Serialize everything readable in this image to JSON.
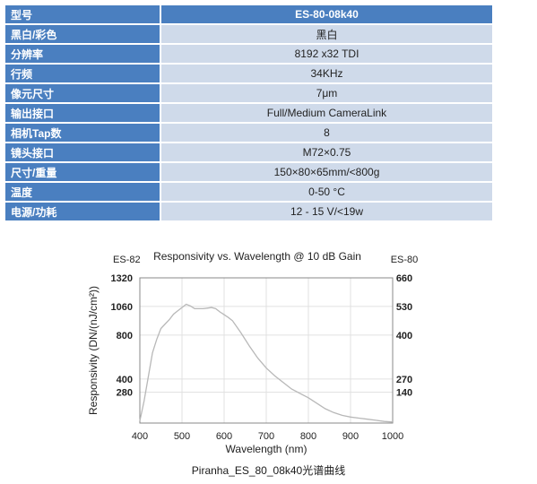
{
  "specs": {
    "header": {
      "label": "型号",
      "value": "ES-80-08k40"
    },
    "rows": [
      {
        "label": "黑白/彩色",
        "value": "黑白"
      },
      {
        "label": "分辨率",
        "value": "8192 x32 TDI"
      },
      {
        "label": "行频",
        "value": "34KHz"
      },
      {
        "label": "像元尺寸",
        "value": "7μm"
      },
      {
        "label": "输出接口",
        "value": "Full/Medium CameraLink"
      },
      {
        "label": "相机Tap数",
        "value": "8"
      },
      {
        "label": "镜头接口",
        "value": "M72×0.75"
      },
      {
        "label": "尺寸/重量",
        "value": "150×80×65mm/<800g"
      },
      {
        "label": "温度",
        "value": "0-50 °C"
      },
      {
        "label": "电源/功耗",
        "value": "12 - 15 V/<19w"
      }
    ]
  },
  "chart_data": {
    "type": "line",
    "title": "Responsivity vs. Wavelength @ 10 dB Gain",
    "xlabel": "Wavelength (nm)",
    "ylabel": "Responsivity (DN/(nJ/cm²))",
    "left_axis_title": "ES-82",
    "right_axis_title": "ES-80",
    "xlim": [
      400,
      1000
    ],
    "ylim": [
      0,
      1320
    ],
    "x_ticks": [
      400,
      500,
      600,
      700,
      800,
      900,
      1000
    ],
    "y_ticks_left": [
      280,
      400,
      800,
      1060,
      1320
    ],
    "y_ticks_right": [
      "140",
      "270",
      "400",
      "530",
      "660"
    ],
    "grid": true,
    "series": [
      {
        "x": [
          400,
          410,
          420,
          430,
          440,
          450,
          460,
          470,
          480,
          490,
          500,
          510,
          520,
          530,
          540,
          550,
          560,
          570,
          580,
          590,
          600,
          610,
          620,
          640,
          660,
          680,
          700,
          720,
          740,
          760,
          780,
          800,
          820,
          840,
          860,
          880,
          900,
          920,
          940,
          960,
          980,
          1000
        ],
        "y": [
          20,
          200,
          420,
          640,
          760,
          860,
          900,
          940,
          990,
          1020,
          1050,
          1080,
          1065,
          1040,
          1040,
          1040,
          1045,
          1050,
          1040,
          1010,
          985,
          960,
          930,
          820,
          700,
          590,
          500,
          430,
          370,
          310,
          270,
          230,
          180,
          130,
          95,
          70,
          55,
          45,
          35,
          25,
          15,
          10
        ]
      }
    ]
  },
  "caption": "Piranha_ES_80_08k40光谱曲线"
}
